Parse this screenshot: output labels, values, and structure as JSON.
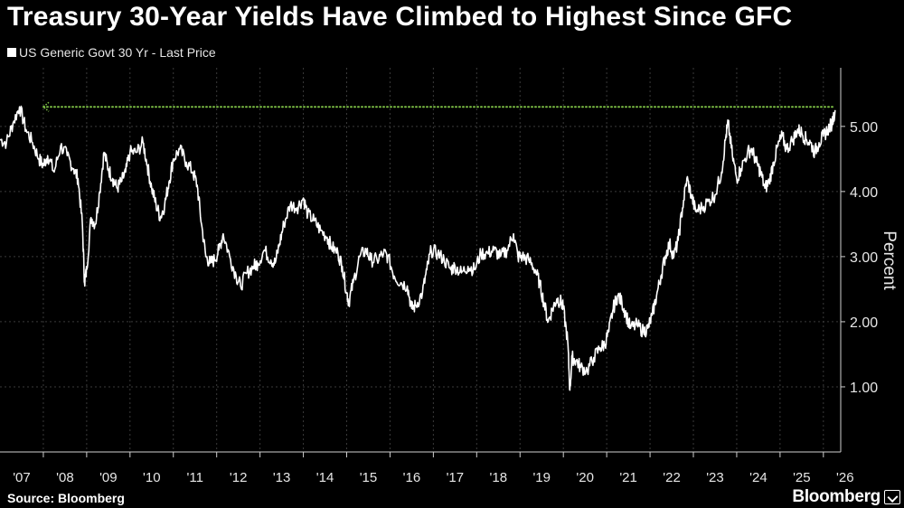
{
  "chart_data": {
    "type": "line",
    "title": "Treasury 30-Year Yields Have Climbed to Highest Since GFC",
    "ylabel": "Percent",
    "source": "Source: Bloomberg",
    "brand": "Bloomberg",
    "series": [
      {
        "name": "US Generic Govt 30 Yr - Last Price",
        "color": "#ffffff",
        "points": [
          [
            2007.0,
            4.8
          ],
          [
            2007.15,
            4.75
          ],
          [
            2007.3,
            5.05
          ],
          [
            2007.45,
            5.3
          ],
          [
            2007.6,
            4.95
          ],
          [
            2007.75,
            4.75
          ],
          [
            2007.9,
            4.5
          ],
          [
            2008.0,
            4.4
          ],
          [
            2008.1,
            4.55
          ],
          [
            2008.25,
            4.3
          ],
          [
            2008.4,
            4.7
          ],
          [
            2008.55,
            4.55
          ],
          [
            2008.7,
            4.35
          ],
          [
            2008.8,
            4.2
          ],
          [
            2008.9,
            3.5
          ],
          [
            2008.95,
            2.6
          ],
          [
            2009.0,
            2.8
          ],
          [
            2009.1,
            3.6
          ],
          [
            2009.2,
            3.5
          ],
          [
            2009.3,
            4.0
          ],
          [
            2009.4,
            4.6
          ],
          [
            2009.5,
            4.35
          ],
          [
            2009.6,
            4.2
          ],
          [
            2009.7,
            4.05
          ],
          [
            2009.8,
            4.15
          ],
          [
            2009.9,
            4.3
          ],
          [
            2010.0,
            4.6
          ],
          [
            2010.15,
            4.6
          ],
          [
            2010.3,
            4.75
          ],
          [
            2010.4,
            4.4
          ],
          [
            2010.5,
            4.05
          ],
          [
            2010.6,
            3.8
          ],
          [
            2010.7,
            3.6
          ],
          [
            2010.8,
            3.8
          ],
          [
            2010.9,
            4.15
          ],
          [
            2011.0,
            4.5
          ],
          [
            2011.15,
            4.65
          ],
          [
            2011.3,
            4.45
          ],
          [
            2011.45,
            4.3
          ],
          [
            2011.55,
            4.1
          ],
          [
            2011.65,
            3.5
          ],
          [
            2011.75,
            3.0
          ],
          [
            2011.85,
            2.9
          ],
          [
            2011.95,
            2.95
          ],
          [
            2012.05,
            3.1
          ],
          [
            2012.15,
            3.35
          ],
          [
            2012.3,
            3.0
          ],
          [
            2012.45,
            2.7
          ],
          [
            2012.55,
            2.55
          ],
          [
            2012.7,
            2.75
          ],
          [
            2012.85,
            2.85
          ],
          [
            2012.95,
            2.9
          ],
          [
            2013.1,
            3.1
          ],
          [
            2013.25,
            2.95
          ],
          [
            2013.35,
            2.9
          ],
          [
            2013.45,
            3.2
          ],
          [
            2013.55,
            3.5
          ],
          [
            2013.7,
            3.8
          ],
          [
            2013.85,
            3.75
          ],
          [
            2014.0,
            3.9
          ],
          [
            2014.1,
            3.65
          ],
          [
            2014.25,
            3.55
          ],
          [
            2014.4,
            3.4
          ],
          [
            2014.55,
            3.3
          ],
          [
            2014.65,
            3.15
          ],
          [
            2014.8,
            3.05
          ],
          [
            2014.9,
            2.85
          ],
          [
            2015.0,
            2.45
          ],
          [
            2015.05,
            2.3
          ],
          [
            2015.15,
            2.6
          ],
          [
            2015.3,
            3.0
          ],
          [
            2015.45,
            3.1
          ],
          [
            2015.55,
            2.95
          ],
          [
            2015.7,
            2.95
          ],
          [
            2015.85,
            3.05
          ],
          [
            2015.95,
            3.0
          ],
          [
            2016.1,
            2.7
          ],
          [
            2016.25,
            2.6
          ],
          [
            2016.4,
            2.55
          ],
          [
            2016.5,
            2.2
          ],
          [
            2016.6,
            2.25
          ],
          [
            2016.75,
            2.45
          ],
          [
            2016.85,
            2.8
          ],
          [
            2016.95,
            3.1
          ],
          [
            2017.1,
            3.05
          ],
          [
            2017.25,
            2.95
          ],
          [
            2017.4,
            2.8
          ],
          [
            2017.5,
            2.85
          ],
          [
            2017.65,
            2.75
          ],
          [
            2017.8,
            2.85
          ],
          [
            2017.95,
            2.8
          ],
          [
            2018.1,
            3.05
          ],
          [
            2018.25,
            3.05
          ],
          [
            2018.4,
            3.1
          ],
          [
            2018.55,
            3.0
          ],
          [
            2018.7,
            3.1
          ],
          [
            2018.85,
            3.35
          ],
          [
            2018.95,
            3.0
          ],
          [
            2019.05,
            3.0
          ],
          [
            2019.2,
            2.95
          ],
          [
            2019.35,
            2.8
          ],
          [
            2019.45,
            2.6
          ],
          [
            2019.55,
            2.3
          ],
          [
            2019.65,
            2.0
          ],
          [
            2019.75,
            2.2
          ],
          [
            2019.85,
            2.35
          ],
          [
            2019.95,
            2.3
          ],
          [
            2020.0,
            2.2
          ],
          [
            2020.1,
            1.7
          ],
          [
            2020.15,
            0.95
          ],
          [
            2020.2,
            1.45
          ],
          [
            2020.3,
            1.4
          ],
          [
            2020.4,
            1.3
          ],
          [
            2020.55,
            1.25
          ],
          [
            2020.7,
            1.45
          ],
          [
            2020.85,
            1.6
          ],
          [
            2020.95,
            1.65
          ],
          [
            2021.05,
            1.85
          ],
          [
            2021.15,
            2.2
          ],
          [
            2021.25,
            2.4
          ],
          [
            2021.35,
            2.3
          ],
          [
            2021.45,
            2.1
          ],
          [
            2021.55,
            1.9
          ],
          [
            2021.7,
            1.95
          ],
          [
            2021.85,
            1.85
          ],
          [
            2021.95,
            1.9
          ],
          [
            2022.05,
            2.1
          ],
          [
            2022.15,
            2.4
          ],
          [
            2022.25,
            2.7
          ],
          [
            2022.35,
            3.0
          ],
          [
            2022.45,
            3.2
          ],
          [
            2022.55,
            3.0
          ],
          [
            2022.65,
            3.25
          ],
          [
            2022.75,
            3.75
          ],
          [
            2022.85,
            4.2
          ],
          [
            2022.95,
            3.95
          ],
          [
            2023.05,
            3.7
          ],
          [
            2023.2,
            3.75
          ],
          [
            2023.35,
            3.85
          ],
          [
            2023.5,
            3.95
          ],
          [
            2023.65,
            4.3
          ],
          [
            2023.75,
            4.85
          ],
          [
            2023.8,
            5.05
          ],
          [
            2023.9,
            4.55
          ],
          [
            2024.0,
            4.2
          ],
          [
            2024.1,
            4.35
          ],
          [
            2024.25,
            4.6
          ],
          [
            2024.35,
            4.65
          ],
          [
            2024.45,
            4.45
          ],
          [
            2024.55,
            4.3
          ],
          [
            2024.65,
            4.05
          ],
          [
            2024.75,
            4.15
          ],
          [
            2024.85,
            4.45
          ],
          [
            2024.95,
            4.7
          ],
          [
            2025.05,
            4.85
          ],
          [
            2025.15,
            4.65
          ],
          [
            2025.3,
            4.8
          ],
          [
            2025.4,
            4.95
          ],
          [
            2025.5,
            4.9
          ],
          [
            2025.6,
            4.8
          ],
          [
            2025.7,
            4.75
          ],
          [
            2025.8,
            4.6
          ],
          [
            2025.9,
            4.75
          ],
          [
            2026.0,
            4.85
          ],
          [
            2026.1,
            4.95
          ],
          [
            2026.2,
            5.05
          ],
          [
            2026.27,
            5.25
          ]
        ]
      }
    ],
    "reference_line": {
      "y": 5.3,
      "color": "#7cbe45",
      "style": "dotted"
    },
    "xlim": [
      2007.0,
      2026.4
    ],
    "ylim": [
      0.0,
      5.9
    ],
    "yticks": [
      1.0,
      2.0,
      3.0,
      4.0,
      5.0
    ],
    "ytick_labels": [
      "1.00",
      "2.00",
      "3.00",
      "4.00",
      "5.00"
    ],
    "xticks": [
      2007,
      2008,
      2009,
      2010,
      2011,
      2012,
      2013,
      2014,
      2015,
      2016,
      2017,
      2018,
      2019,
      2020,
      2021,
      2022,
      2023,
      2024,
      2025,
      2026
    ],
    "xtick_labels": [
      "'07",
      "'08",
      "'09",
      "'10",
      "'11",
      "'12",
      "'13",
      "'14",
      "'15",
      "'16",
      "'17",
      "'18",
      "'19",
      "'20",
      "'21",
      "'22",
      "'23",
      "'24",
      "'25",
      "'26"
    ],
    "grid": true,
    "axis_position": "right",
    "background": "#000000",
    "gridline_color": "#3a3a3a"
  }
}
